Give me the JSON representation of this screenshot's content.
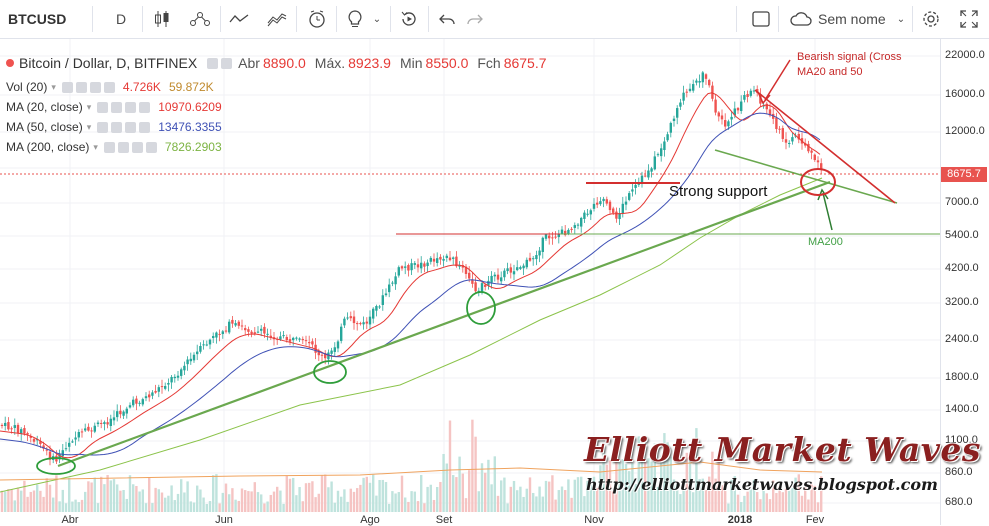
{
  "toolbar": {
    "symbol": "BTCUSD",
    "interval": "D",
    "layout_label": "Sem nome"
  },
  "legend": {
    "title": "Bitcoin / Dollar, D, BITFINEX",
    "open_label": "Abr",
    "open_value": "8890.0",
    "high_label": "Máx.",
    "high_value": "8923.9",
    "low_label": "Min",
    "low_value": "8550.0",
    "close_label": "Fch",
    "close_value": "8675.7",
    "vol_label": "Vol (20)",
    "vol_v1": "4.726K",
    "vol_v2": "59.872K",
    "ma20_label": "MA (20, close)",
    "ma20_value": "10970.6209",
    "ma50_label": "MA (50, close)",
    "ma50_value": "13476.3355",
    "ma200_label": "MA (200, close)",
    "ma200_value": "7826.2903"
  },
  "price_axis": [
    "22000.0",
    "16000.0",
    "12000.0",
    "8675.7",
    "7000.0",
    "5400.0",
    "4200.0",
    "3200.0",
    "2400.0",
    "1800.0",
    "1400.0",
    "1100.0",
    "860.0",
    "680.0"
  ],
  "current_price": "8675.7",
  "time_axis": [
    "Abr",
    "Jun",
    "Ago",
    "Set",
    "Nov",
    "2018",
    "Fev"
  ],
  "annotations": {
    "bearish": "Bearish signal (Cross MA20 and 50",
    "support": "Strong support",
    "ma200": "MA200"
  },
  "watermark": {
    "title": "Elliott Market Waves",
    "url": "http://elliottmarketwaves.blogspot.com"
  },
  "colors": {
    "up": "#26a69a",
    "down": "#ef5350",
    "ma20": "#e53935",
    "ma50": "#3f51b5",
    "ma200": "#8bc34a",
    "trend_green": "#6aa84f",
    "resistance_red": "#d32f2f"
  }
}
